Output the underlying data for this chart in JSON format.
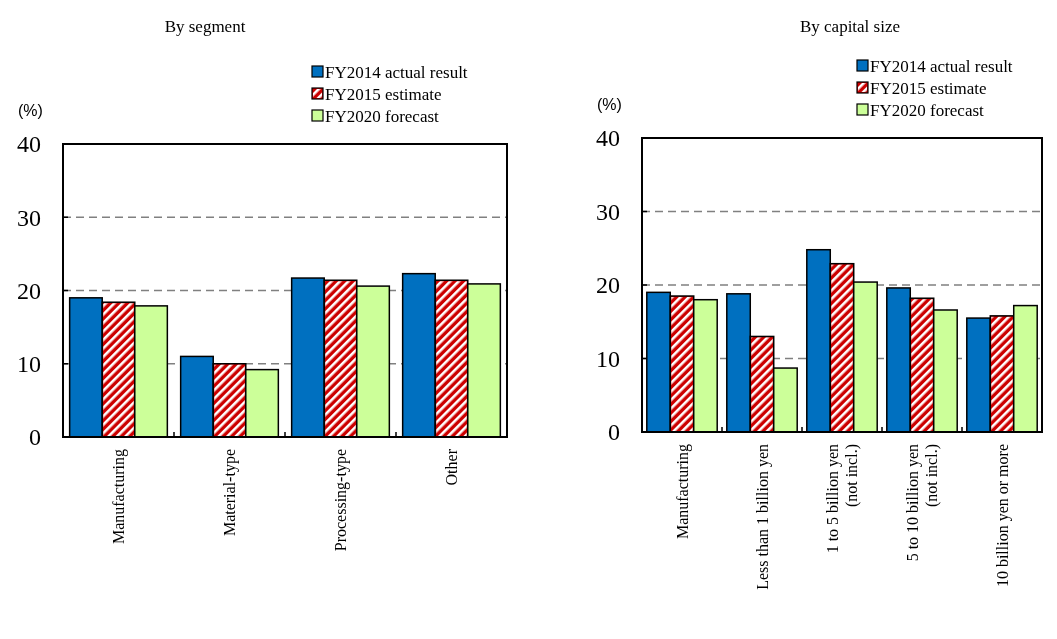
{
  "chart_data": [
    {
      "type": "bar",
      "title": "By segment",
      "ylabel": "(%)",
      "categories": [
        "Manufacturing",
        "Material-type",
        "Processing-type",
        "Other"
      ],
      "series": [
        {
          "name": "FY2014 actual result",
          "color": "#0070c0",
          "values": [
            19.0,
            11.0,
            21.7,
            22.3
          ]
        },
        {
          "name": "FY2015 estimate",
          "color": "#cc0000",
          "values": [
            18.4,
            10.0,
            21.4,
            21.4
          ]
        },
        {
          "name": "FY2020 forecast",
          "color": "#ccff99",
          "values": [
            17.9,
            9.2,
            20.6,
            20.9
          ]
        }
      ],
      "ylim": [
        0,
        40
      ],
      "yticks": [
        0,
        10,
        20,
        30,
        40
      ],
      "grid": "y",
      "legend": "top right"
    },
    {
      "type": "bar",
      "title": "By capital size",
      "ylabel": "(%)",
      "categories": [
        "Manufacturing",
        "Less than 1 billion yen",
        "1 to 5 billion yen\n(not incl.)",
        "5 to 10 billion yen\n(not incl.)",
        "10 billion yen or more"
      ],
      "series": [
        {
          "name": "FY2014 actual result",
          "color": "#0070c0",
          "values": [
            19.0,
            18.8,
            24.8,
            19.6,
            15.5
          ]
        },
        {
          "name": "FY2015 estimate",
          "color": "#cc0000",
          "values": [
            18.5,
            13.0,
            22.9,
            18.2,
            15.8
          ]
        },
        {
          "name": "FY2020 forecast",
          "color": "#ccff99",
          "values": [
            18.0,
            8.7,
            20.4,
            16.6,
            17.2
          ]
        }
      ],
      "ylim": [
        0,
        40
      ],
      "yticks": [
        0,
        10,
        20,
        30,
        40
      ],
      "grid": "y",
      "legend": "top right"
    }
  ]
}
